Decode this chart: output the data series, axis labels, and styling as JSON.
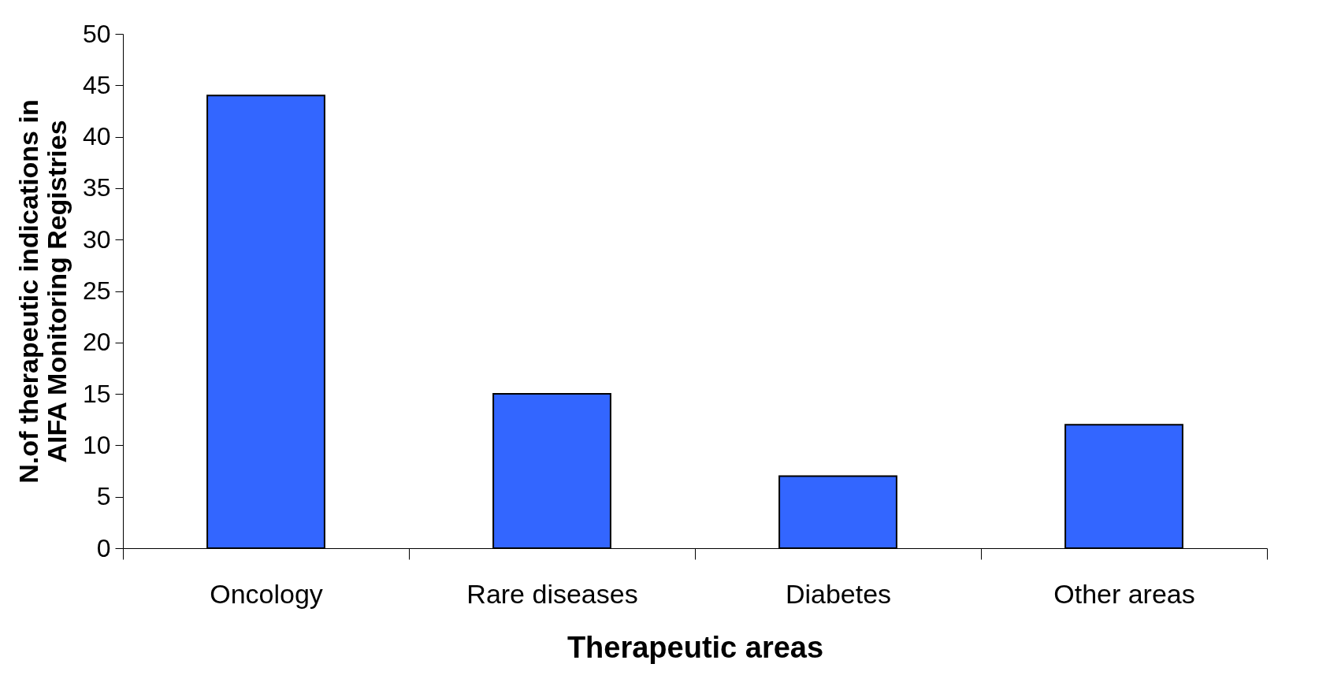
{
  "chart_data": {
    "type": "bar",
    "xlabel": "Therapeutic areas",
    "ylabel": "N.of therapeutic indications in\nAIFA Monitoring Registries",
    "categories": [
      "Oncology",
      "Rare diseases",
      "Diabetes",
      "Other areas"
    ],
    "values": [
      44,
      15,
      7,
      12
    ],
    "color": "#3366ff",
    "ylim": [
      0,
      50
    ],
    "yticks": [
      0,
      5,
      10,
      15,
      20,
      25,
      30,
      35,
      40,
      45,
      50
    ],
    "grid": false
  }
}
